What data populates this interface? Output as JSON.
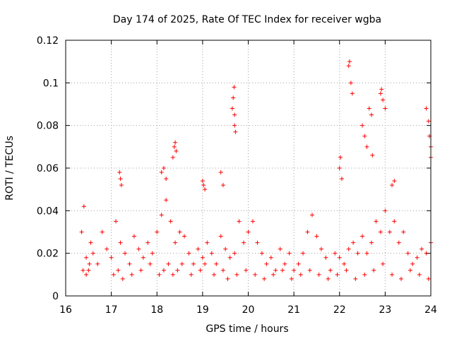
{
  "chart_data": {
    "type": "scatter",
    "title": "Day 174 of 2025, Rate Of TEC Index for receiver wgba",
    "xlabel": "GPS time / hours",
    "ylabel": "ROTI / TECUs",
    "xlim": [
      16,
      24
    ],
    "ylim": [
      0,
      0.12
    ],
    "x_ticks": [
      16,
      17,
      18,
      19,
      20,
      21,
      22,
      23,
      24
    ],
    "x_tick_labels": [
      "16",
      "17",
      "18",
      "19",
      "20",
      "21",
      "22",
      "23",
      "24"
    ],
    "y_ticks": [
      0,
      0.02,
      0.04,
      0.06,
      0.08,
      0.1,
      0.12
    ],
    "y_tick_labels": [
      "0",
      "0.02",
      "0.04",
      "0.06",
      "0.08",
      "0.1",
      "0.12"
    ],
    "grid": true,
    "marker": "+",
    "color": "#ff0000",
    "series": [
      {
        "name": "ROTI",
        "x": [
          16.35,
          16.4,
          16.45,
          16.5,
          16.55,
          16.6,
          16.7,
          16.8,
          16.9,
          17.0,
          17.1,
          17.2,
          17.3,
          17.4,
          17.5,
          17.6,
          17.7,
          17.8,
          17.9,
          18.0,
          18.1,
          18.2,
          18.3,
          18.4,
          18.5,
          18.6,
          18.7,
          18.8,
          18.9,
          19.0,
          19.1,
          19.2,
          19.3,
          19.4,
          19.5,
          19.6,
          19.7,
          19.8,
          19.9,
          20.0,
          20.1,
          20.2,
          20.3,
          20.4,
          20.5,
          20.6,
          20.7,
          20.8,
          20.9,
          21.0,
          21.1,
          21.2,
          21.3,
          21.4,
          21.5,
          21.6,
          21.7,
          21.8,
          21.9,
          22.0,
          22.1,
          22.2,
          22.3,
          22.4,
          22.5,
          22.6,
          22.7,
          22.8,
          22.9,
          23.0,
          23.1,
          23.2,
          23.3,
          23.4,
          23.5,
          23.6,
          23.7,
          23.8,
          23.9,
          24.0,
          16.38,
          16.45,
          16.52,
          17.05,
          17.15,
          17.25,
          17.45,
          17.65,
          17.85,
          18.05,
          18.15,
          18.25,
          18.35,
          18.45,
          18.55,
          18.75,
          18.95,
          19.05,
          19.25,
          19.45,
          19.55,
          19.75,
          19.95,
          20.15,
          20.35,
          20.55,
          20.75,
          20.95,
          21.15,
          21.35,
          21.55,
          21.75,
          21.95,
          22.15,
          22.35,
          22.55,
          22.75,
          22.95,
          23.15,
          23.35,
          23.55,
          23.75,
          23.95,
          17.18,
          17.2,
          17.22,
          18.1,
          18.15,
          18.2,
          18.35,
          18.38,
          18.4,
          18.42,
          19.0,
          19.02,
          19.05,
          19.4,
          19.45,
          19.65,
          19.67,
          19.69,
          19.7,
          19.72,
          19.7,
          22.0,
          22.02,
          22.05,
          22.2,
          22.22,
          22.25,
          22.28,
          22.5,
          22.55,
          22.6,
          22.65,
          22.7,
          22.72,
          22.9,
          22.92,
          22.95,
          23.0,
          23.15,
          23.2,
          23.9,
          23.95,
          23.97,
          24.0,
          24.0
        ],
        "y": [
          0.03,
          0.042,
          0.018,
          0.012,
          0.025,
          0.02,
          0.015,
          0.03,
          0.022,
          0.018,
          0.035,
          0.025,
          0.02,
          0.015,
          0.028,
          0.022,
          0.018,
          0.025,
          0.02,
          0.03,
          0.038,
          0.045,
          0.035,
          0.025,
          0.03,
          0.028,
          0.02,
          0.015,
          0.022,
          0.018,
          0.025,
          0.02,
          0.015,
          0.028,
          0.022,
          0.018,
          0.02,
          0.035,
          0.025,
          0.03,
          0.035,
          0.025,
          0.02,
          0.015,
          0.018,
          0.012,
          0.022,
          0.015,
          0.02,
          0.012,
          0.015,
          0.02,
          0.03,
          0.038,
          0.028,
          0.022,
          0.018,
          0.012,
          0.02,
          0.018,
          0.015,
          0.022,
          0.025,
          0.02,
          0.028,
          0.02,
          0.025,
          0.035,
          0.03,
          0.04,
          0.03,
          0.035,
          0.025,
          0.03,
          0.02,
          0.015,
          0.018,
          0.022,
          0.02,
          0.025,
          0.012,
          0.01,
          0.015,
          0.01,
          0.012,
          0.008,
          0.01,
          0.012,
          0.015,
          0.01,
          0.012,
          0.015,
          0.01,
          0.012,
          0.015,
          0.01,
          0.012,
          0.015,
          0.01,
          0.012,
          0.008,
          0.01,
          0.012,
          0.01,
          0.008,
          0.01,
          0.012,
          0.008,
          0.01,
          0.012,
          0.01,
          0.008,
          0.01,
          0.012,
          0.008,
          0.01,
          0.012,
          0.015,
          0.01,
          0.008,
          0.012,
          0.01,
          0.008,
          0.058,
          0.055,
          0.052,
          0.058,
          0.06,
          0.055,
          0.065,
          0.07,
          0.072,
          0.068,
          0.054,
          0.052,
          0.05,
          0.058,
          0.052,
          0.088,
          0.093,
          0.098,
          0.085,
          0.077,
          0.08,
          0.06,
          0.065,
          0.055,
          0.108,
          0.11,
          0.1,
          0.095,
          0.08,
          0.075,
          0.07,
          0.088,
          0.085,
          0.066,
          0.095,
          0.097,
          0.092,
          0.088,
          0.052,
          0.054,
          0.088,
          0.082,
          0.075,
          0.065,
          0.07
        ]
      }
    ]
  }
}
